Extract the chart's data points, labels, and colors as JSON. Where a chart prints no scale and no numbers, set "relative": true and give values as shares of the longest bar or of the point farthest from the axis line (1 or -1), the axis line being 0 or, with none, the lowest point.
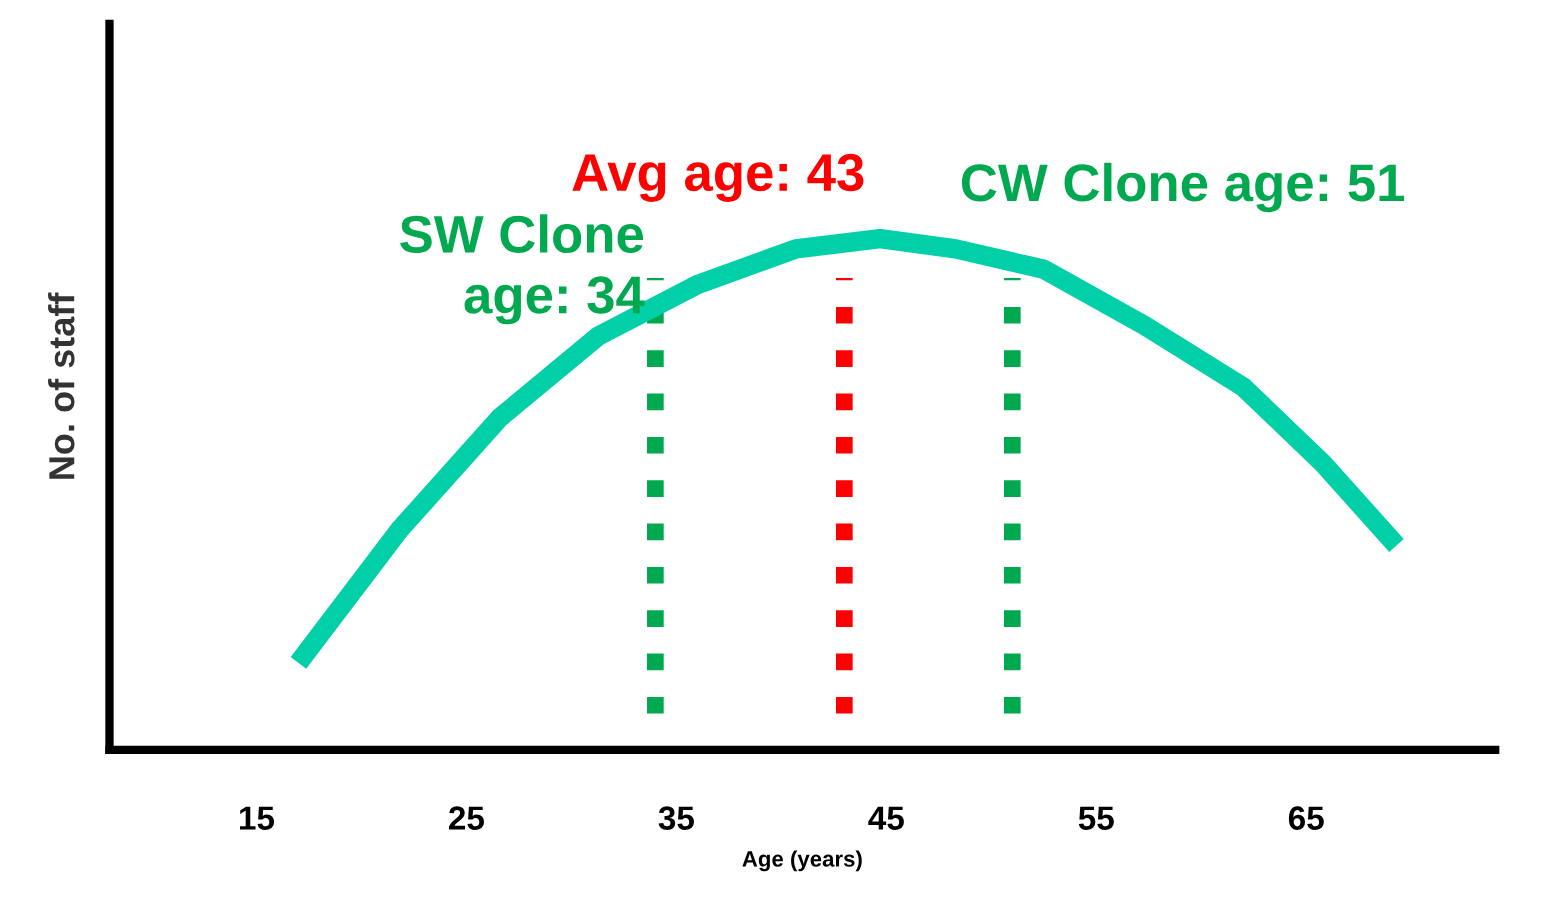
{
  "chart_data": {
    "type": "line",
    "relative": true,
    "xlabel": "Age (years)",
    "ylabel": "No. of staff",
    "xlim": [
      8,
      74
    ],
    "xticks": [
      15,
      25,
      35,
      45,
      55,
      65
    ],
    "series": [
      {
        "color": "#00cfa8",
        "x": [
          17.0,
          21.8,
          26.6,
          31.3,
          36.0,
          40.7,
          44.7,
          48.3,
          52.5,
          57.3,
          62.0,
          65.8,
          69.3
        ],
        "values": [
          0.17,
          0.43,
          0.65,
          0.81,
          0.91,
          0.98,
          1.0,
          0.98,
          0.94,
          0.83,
          0.71,
          0.56,
          0.4
        ]
      }
    ],
    "ref_lines": [
      {
        "axis": "x",
        "value": 34,
        "label": "SW Clone\nage: 34",
        "color": "#00a84f",
        "line_style": "dotted"
      },
      {
        "axis": "x",
        "value": 43,
        "label": "Avg age: 43",
        "color": "#ff0000",
        "line_style": "dotted"
      },
      {
        "axis": "x",
        "value": 51,
        "label": "CW Clone age: 51",
        "color": "#00a84f",
        "line_style": "dotted"
      }
    ],
    "grid": false,
    "legend": false,
    "marker": "none",
    "line_style": "solid"
  }
}
